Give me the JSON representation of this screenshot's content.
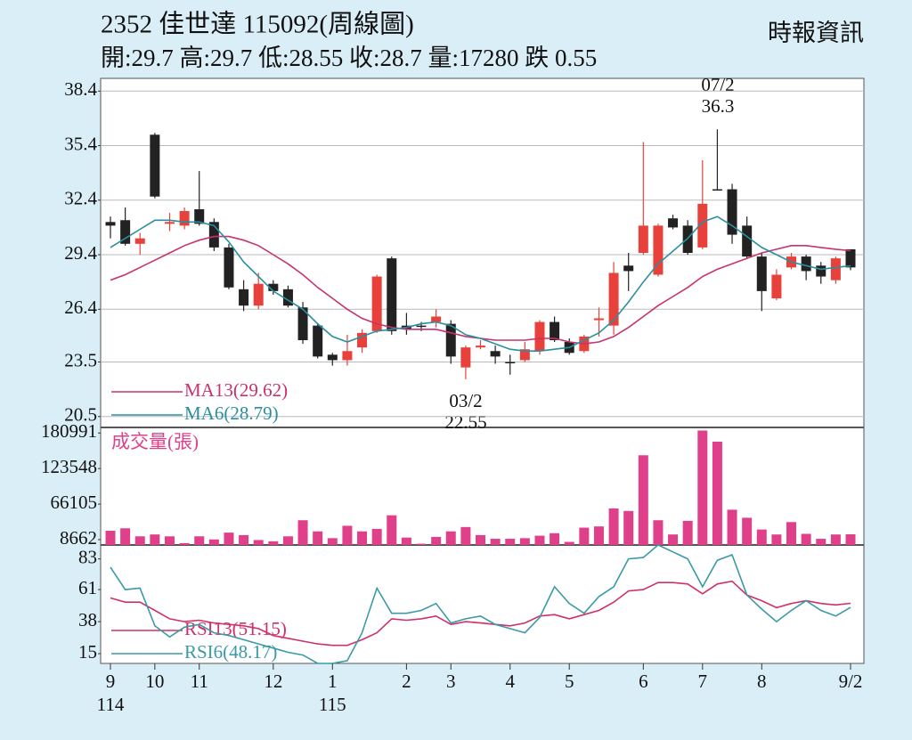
{
  "chart_data": [
    {
      "type": "candlestick",
      "title": "2352  佳世達 115092(周線圖)",
      "subtitle": "開:29.7 高:29.7 低:28.55 收:28.7 量:17280 跌 0.55",
      "source": "時報資訊",
      "up_color": "#e8413c",
      "down_color": "#222222",
      "open": [
        31.2,
        31.3,
        30.0,
        36.0,
        31.1,
        31.0,
        31.9,
        31.2,
        29.8,
        27.5,
        26.6,
        27.8,
        27.5,
        26.5,
        25.5,
        23.9,
        23.6,
        24.3,
        25.2,
        29.2,
        25.5,
        25.5,
        25.7,
        25.6,
        23.2,
        24.3,
        24.1,
        23.5,
        23.6,
        24.1,
        25.7,
        24.6,
        24.1,
        25.8,
        25.5,
        28.8,
        29.5,
        28.3,
        31.4,
        31.0,
        29.8,
        33.0,
        33.0,
        31.0,
        29.3,
        27.0,
        28.7,
        29.3,
        28.8,
        28.0,
        29.7
      ],
      "high": [
        31.5,
        32.0,
        30.6,
        36.1,
        31.7,
        32.0,
        34.0,
        31.4,
        30.0,
        28.0,
        28.4,
        28.0,
        27.7,
        26.8,
        25.6,
        24.0,
        25.0,
        25.3,
        28.3,
        29.3,
        26.2,
        25.7,
        26.4,
        25.8,
        24.4,
        24.7,
        24.4,
        23.9,
        24.6,
        25.8,
        26.0,
        24.8,
        25.0,
        26.5,
        29.0,
        29.5,
        35.6,
        31.1,
        31.6,
        31.3,
        34.6,
        36.3,
        33.3,
        31.5,
        29.5,
        28.6,
        29.5,
        29.4,
        29.0,
        29.3,
        29.7
      ],
      "low": [
        30.3,
        29.9,
        29.4,
        32.5,
        30.7,
        30.8,
        31.0,
        29.6,
        27.5,
        26.3,
        26.4,
        27.2,
        26.5,
        24.5,
        23.7,
        23.3,
        23.3,
        24.0,
        25.1,
        25.0,
        25.0,
        25.2,
        25.4,
        23.4,
        22.55,
        24.2,
        23.4,
        22.8,
        23.5,
        23.9,
        24.6,
        23.9,
        24.0,
        24.9,
        25.0,
        27.4,
        29.4,
        28.2,
        30.8,
        29.4,
        29.7,
        33.0,
        30.0,
        29.2,
        26.3,
        26.9,
        28.6,
        28.0,
        27.8,
        27.8,
        28.55
      ],
      "close": [
        31.0,
        30.0,
        30.3,
        32.6,
        31.2,
        31.8,
        31.1,
        29.8,
        27.6,
        26.6,
        27.8,
        27.4,
        26.6,
        24.7,
        23.8,
        23.6,
        24.1,
        25.1,
        28.2,
        25.2,
        25.3,
        25.5,
        26.0,
        23.8,
        24.3,
        24.4,
        23.8,
        23.5,
        24.2,
        25.7,
        24.7,
        24.0,
        24.9,
        25.9,
        28.4,
        28.5,
        31.0,
        31.0,
        30.9,
        29.5,
        32.2,
        33.0,
        30.5,
        29.3,
        27.4,
        28.3,
        29.3,
        28.5,
        28.2,
        29.2,
        28.7
      ],
      "series": [
        {
          "name": "MA13(29.62)",
          "color": "#c8326e",
          "values": [
            28.0,
            28.3,
            28.7,
            29.1,
            29.5,
            29.9,
            30.2,
            30.4,
            30.4,
            30.2,
            29.9,
            29.4,
            28.9,
            28.3,
            27.6,
            27.0,
            26.4,
            25.9,
            25.6,
            25.4,
            25.3,
            25.3,
            25.3,
            25.1,
            24.9,
            24.8,
            24.7,
            24.7,
            24.7,
            24.8,
            24.8,
            24.6,
            24.5,
            24.6,
            24.9,
            25.4,
            26.0,
            26.6,
            27.1,
            27.6,
            28.2,
            28.6,
            28.9,
            29.2,
            29.5,
            29.7,
            29.9,
            29.9,
            29.8,
            29.7,
            29.62
          ]
        },
        {
          "name": "MA6(28.79)",
          "color": "#2a8fa0",
          "values": [
            29.8,
            30.3,
            30.8,
            31.3,
            31.3,
            31.2,
            31.2,
            31.0,
            30.1,
            29.0,
            28.2,
            27.4,
            26.9,
            26.4,
            25.6,
            24.9,
            24.6,
            24.9,
            25.2,
            25.3,
            25.4,
            25.6,
            25.7,
            25.5,
            25.0,
            24.8,
            24.5,
            24.2,
            24.1,
            24.1,
            24.2,
            24.3,
            24.7,
            25.1,
            25.8,
            26.8,
            27.9,
            28.9,
            29.6,
            30.3,
            31.2,
            31.5,
            31.0,
            30.4,
            29.8,
            29.4,
            29.0,
            28.8,
            28.6,
            28.7,
            28.79
          ]
        }
      ],
      "annotations": [
        {
          "date": "07/2",
          "text": "36.3"
        },
        {
          "date": "03/2",
          "text": "22.55"
        }
      ],
      "ylim": [
        19.9,
        39.1
      ],
      "yticks": [
        20.5,
        23.5,
        26.4,
        29.4,
        32.4,
        35.4,
        38.4
      ],
      "grid": true
    },
    {
      "type": "bar",
      "series": [
        {
          "name": "成交量(張)",
          "color": "#e0408a",
          "values": [
            23000,
            27000,
            14000,
            17000,
            14000,
            3000,
            14000,
            9000,
            20000,
            16000,
            8000,
            6000,
            14000,
            40000,
            22000,
            11000,
            31000,
            22000,
            26000,
            48000,
            12000,
            2000,
            13000,
            22000,
            29000,
            16000,
            10000,
            10000,
            11000,
            15000,
            19000,
            5000,
            28000,
            30000,
            59000,
            55000,
            145000,
            40000,
            17000,
            39000,
            185000,
            167000,
            57000,
            44000,
            25000,
            17000,
            37000,
            18000,
            10000,
            17000,
            17280
          ]
        }
      ],
      "ylim": [
        0,
        190000
      ],
      "yticks": [
        8662,
        66105,
        123548,
        180991
      ],
      "grid": false
    },
    {
      "type": "line",
      "categories": [
        "9",
        null,
        null,
        "10",
        null,
        null,
        "11",
        null,
        null,
        null,
        null,
        "12",
        null,
        null,
        null,
        "1",
        null,
        null,
        null,
        null,
        "2",
        null,
        null,
        "3",
        null,
        null,
        null,
        "4",
        null,
        null,
        null,
        "5",
        null,
        null,
        null,
        null,
        "6",
        null,
        null,
        null,
        "7",
        null,
        null,
        null,
        "8",
        null,
        null,
        null,
        null,
        null,
        "9/2"
      ],
      "category_years": [
        "114",
        null,
        null,
        null,
        null,
        null,
        null,
        null,
        null,
        null,
        null,
        null,
        null,
        null,
        null,
        "115",
        null,
        null,
        null,
        null,
        null,
        null,
        null,
        null,
        null,
        null,
        null,
        null,
        null,
        null,
        null,
        null,
        null,
        null,
        null,
        null,
        null,
        null,
        null,
        null,
        null,
        null,
        null,
        null,
        null,
        null,
        null,
        null,
        null,
        null,
        null
      ],
      "series": [
        {
          "name": "RSI13(51.15)",
          "color": "#d0306a",
          "values": [
            55,
            52,
            52,
            46,
            40,
            38,
            39,
            37,
            36,
            35,
            33,
            28,
            26,
            24,
            22,
            21,
            21,
            25,
            30,
            40,
            39,
            40,
            42,
            36,
            38,
            37,
            36,
            35,
            37,
            42,
            43,
            40,
            43,
            46,
            52,
            60,
            61,
            66,
            66,
            65,
            58,
            65,
            67,
            57,
            53,
            48,
            51,
            53,
            51,
            50,
            51.15
          ]
        },
        {
          "name": "RSI6(48.17)",
          "color": "#3a9aa8",
          "values": [
            77,
            61,
            62,
            35,
            27,
            34,
            36,
            30,
            28,
            25,
            22,
            19,
            16,
            14,
            8,
            8,
            10,
            30,
            62,
            44,
            44,
            46,
            51,
            37,
            40,
            42,
            36,
            33,
            30,
            41,
            63,
            51,
            44,
            56,
            63,
            83,
            84,
            93,
            88,
            83,
            63,
            82,
            86,
            57,
            47,
            38,
            46,
            53,
            46,
            42,
            48.17
          ]
        }
      ],
      "ylim": [
        8,
        93
      ],
      "yticks": [
        15,
        38,
        61,
        83
      ],
      "grid": false
    }
  ]
}
